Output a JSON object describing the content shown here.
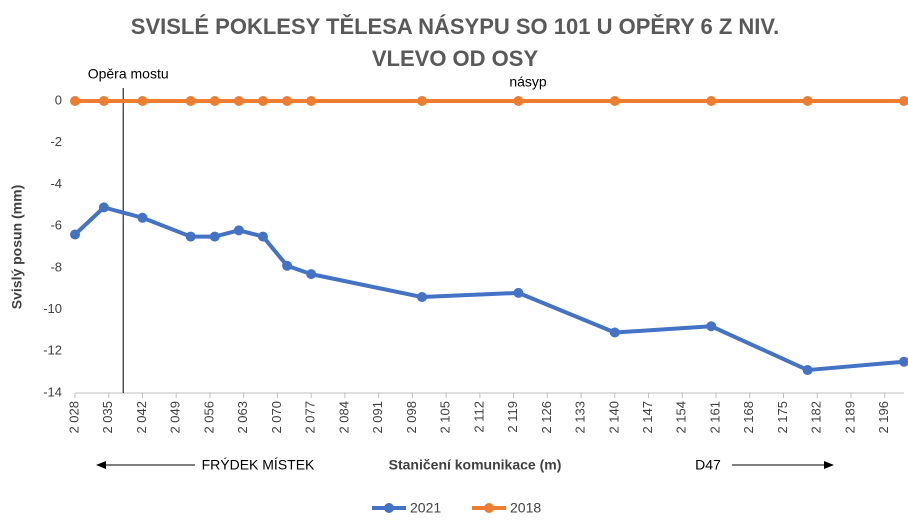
{
  "chart_data": {
    "type": "line",
    "title": [
      "SVISLÉ POKLESY TĚLESA NÁSYPU SO 101 U OPĚRY 6 Z NIV.",
      "VLEVO OD OSY"
    ],
    "x_label": "Staničení komunikace (m)",
    "y_label": "Svislý posun (mm)",
    "x": [
      2028,
      2034,
      2042,
      2052,
      2057,
      2062,
      2067,
      2072,
      2077,
      2100,
      2120,
      2140,
      2160,
      2180,
      2200
    ],
    "series": [
      {
        "name": "2021",
        "color": "#4472c4",
        "values": [
          -6.4,
          -5.1,
          -5.6,
          -6.5,
          -6.5,
          -6.2,
          -6.5,
          -7.9,
          -8.3,
          -9.4,
          -9.2,
          -11.1,
          -10.8,
          -12.9,
          -12.5
        ]
      },
      {
        "name": "2018",
        "color": "#ed7d31",
        "values": [
          0,
          0,
          0,
          0,
          0,
          0,
          0,
          0,
          0,
          0,
          0,
          0,
          0,
          0,
          0
        ]
      }
    ],
    "xlim": [
      2028,
      2200
    ],
    "xticks": [
      {
        "value": 2028,
        "label": "2 028"
      },
      {
        "value": 2035,
        "label": "2 035"
      },
      {
        "value": 2042,
        "label": "2 042"
      },
      {
        "value": 2049,
        "label": "2 049"
      },
      {
        "value": 2056,
        "label": "2 056"
      },
      {
        "value": 2063,
        "label": "2 063"
      },
      {
        "value": 2070,
        "label": "2 070"
      },
      {
        "value": 2077,
        "label": "2 077"
      },
      {
        "value": 2084,
        "label": "2 084"
      },
      {
        "value": 2091,
        "label": "2 091"
      },
      {
        "value": 2098,
        "label": "2 098"
      },
      {
        "value": 2105,
        "label": "2 105"
      },
      {
        "value": 2112,
        "label": "2 112"
      },
      {
        "value": 2119,
        "label": "2 119"
      },
      {
        "value": 2126,
        "label": "2 126"
      },
      {
        "value": 2133,
        "label": "2 133"
      },
      {
        "value": 2140,
        "label": "2 140"
      },
      {
        "value": 2147,
        "label": "2 147"
      },
      {
        "value": 2154,
        "label": "2 154"
      },
      {
        "value": 2161,
        "label": "2 161"
      },
      {
        "value": 2168,
        "label": "2 168"
      },
      {
        "value": 2175,
        "label": "2 175"
      },
      {
        "value": 2182,
        "label": "2 182"
      },
      {
        "value": 2189,
        "label": "2 189"
      },
      {
        "value": 2196,
        "label": "2 196"
      }
    ],
    "ylim": [
      -14,
      0
    ],
    "yticks": [
      0,
      -2,
      -4,
      -6,
      -8,
      -10,
      -12,
      -14
    ],
    "abutment": {
      "text": "Opěra mostu",
      "x": 2038
    },
    "annotations": [
      "násyp",
      "FRÝDEK MÍSTEK",
      "D47"
    ],
    "legend": "bottom"
  }
}
